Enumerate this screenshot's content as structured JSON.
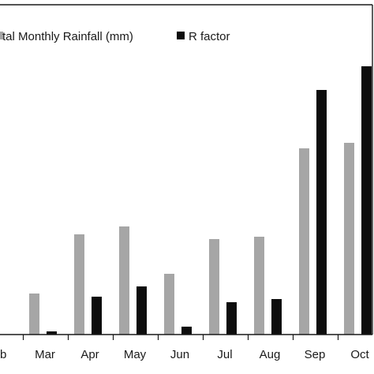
{
  "colors": {
    "rainfall": "#a6a6a6",
    "rfactor": "#0d0d0d",
    "axis": "#1a1a1a",
    "background": "#ffffff"
  },
  "chart_data": {
    "type": "bar",
    "title": "",
    "xlabel": "",
    "ylabel": "",
    "grid": false,
    "legend_position": "top",
    "categories": [
      "eb",
      "Mar",
      "Apr",
      "May",
      "Jun",
      "Jul",
      "Aug",
      "Sep",
      "Oct"
    ],
    "series": [
      {
        "name": "tal Monthly Rainfall (mm)",
        "values": [
          0,
          52,
          127,
          137,
          77,
          121,
          124,
          236,
          243
        ]
      },
      {
        "name": "R factor",
        "values": [
          0,
          4,
          48,
          61,
          10,
          41,
          45,
          310,
          340
        ]
      }
    ]
  }
}
